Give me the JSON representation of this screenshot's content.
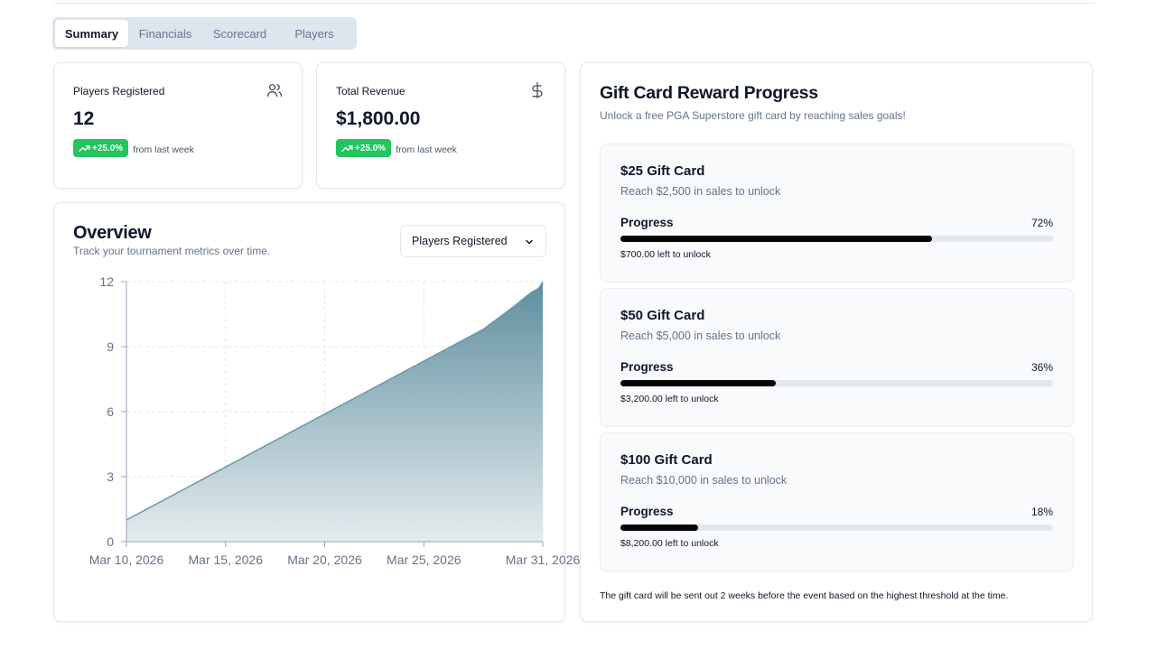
{
  "tabs": [
    {
      "label": "Summary",
      "active": true
    },
    {
      "label": "Financials",
      "active": false
    },
    {
      "label": "Scorecard",
      "active": false
    },
    {
      "label": "Players",
      "active": false
    }
  ],
  "stats": {
    "players": {
      "title": "Players Registered",
      "value": "12",
      "change": "+25.0%",
      "change_suffix": "from last week",
      "icon": "users-icon"
    },
    "revenue": {
      "title": "Total Revenue",
      "value": "$1,800.00",
      "change": "+25.0%",
      "change_suffix": "from last week",
      "icon": "dollar-icon"
    }
  },
  "overview": {
    "title": "Overview",
    "subtitle": "Track your tournament metrics over time.",
    "select_value": "Players Registered"
  },
  "chart_data": {
    "type": "area",
    "title": "",
    "xlabel": "",
    "ylabel": "",
    "x_ticks": [
      "Mar 10, 2026",
      "Mar 15, 2026",
      "Mar 20, 2026",
      "Mar 25, 2026",
      "Mar 31, 2026"
    ],
    "x_tick_days": [
      10,
      15,
      20,
      25,
      31
    ],
    "y_ticks": [
      "12",
      "9",
      "6",
      "3",
      "0"
    ],
    "ylim": [
      0,
      12
    ],
    "xlim_days": [
      10,
      31
    ],
    "series": [
      {
        "x_days": [
          10,
          28,
          29,
          30,
          31
        ],
        "y": [
          1,
          9.8,
          10.5,
          11.2,
          12
        ]
      }
    ],
    "grid": true,
    "fill_colors": {
      "top": "#5e8e9f",
      "bottom": "#e4ecef"
    },
    "line_color": "#6e97a6"
  },
  "gift": {
    "title": "Gift Card Reward Progress",
    "subtitle": "Unlock a free PGA Superstore gift card by reaching sales goals!",
    "progress_label": "Progress",
    "tiers": [
      {
        "name": "$25 Gift Card",
        "desc": "Reach $2,500 in sales to unlock",
        "pct_label": "72%",
        "pct": 72,
        "left": "$700.00 left to unlock"
      },
      {
        "name": "$50 Gift Card",
        "desc": "Reach $5,000 in sales to unlock",
        "pct_label": "36%",
        "pct": 36,
        "left": "$3,200.00 left to unlock"
      },
      {
        "name": "$100 Gift Card",
        "desc": "Reach $10,000 in sales to unlock",
        "pct_label": "18%",
        "pct": 18,
        "left": "$8,200.00 left to unlock"
      }
    ],
    "footer": "The gift card will be sent out 2 weeks before the event based on the highest threshold at the time."
  }
}
